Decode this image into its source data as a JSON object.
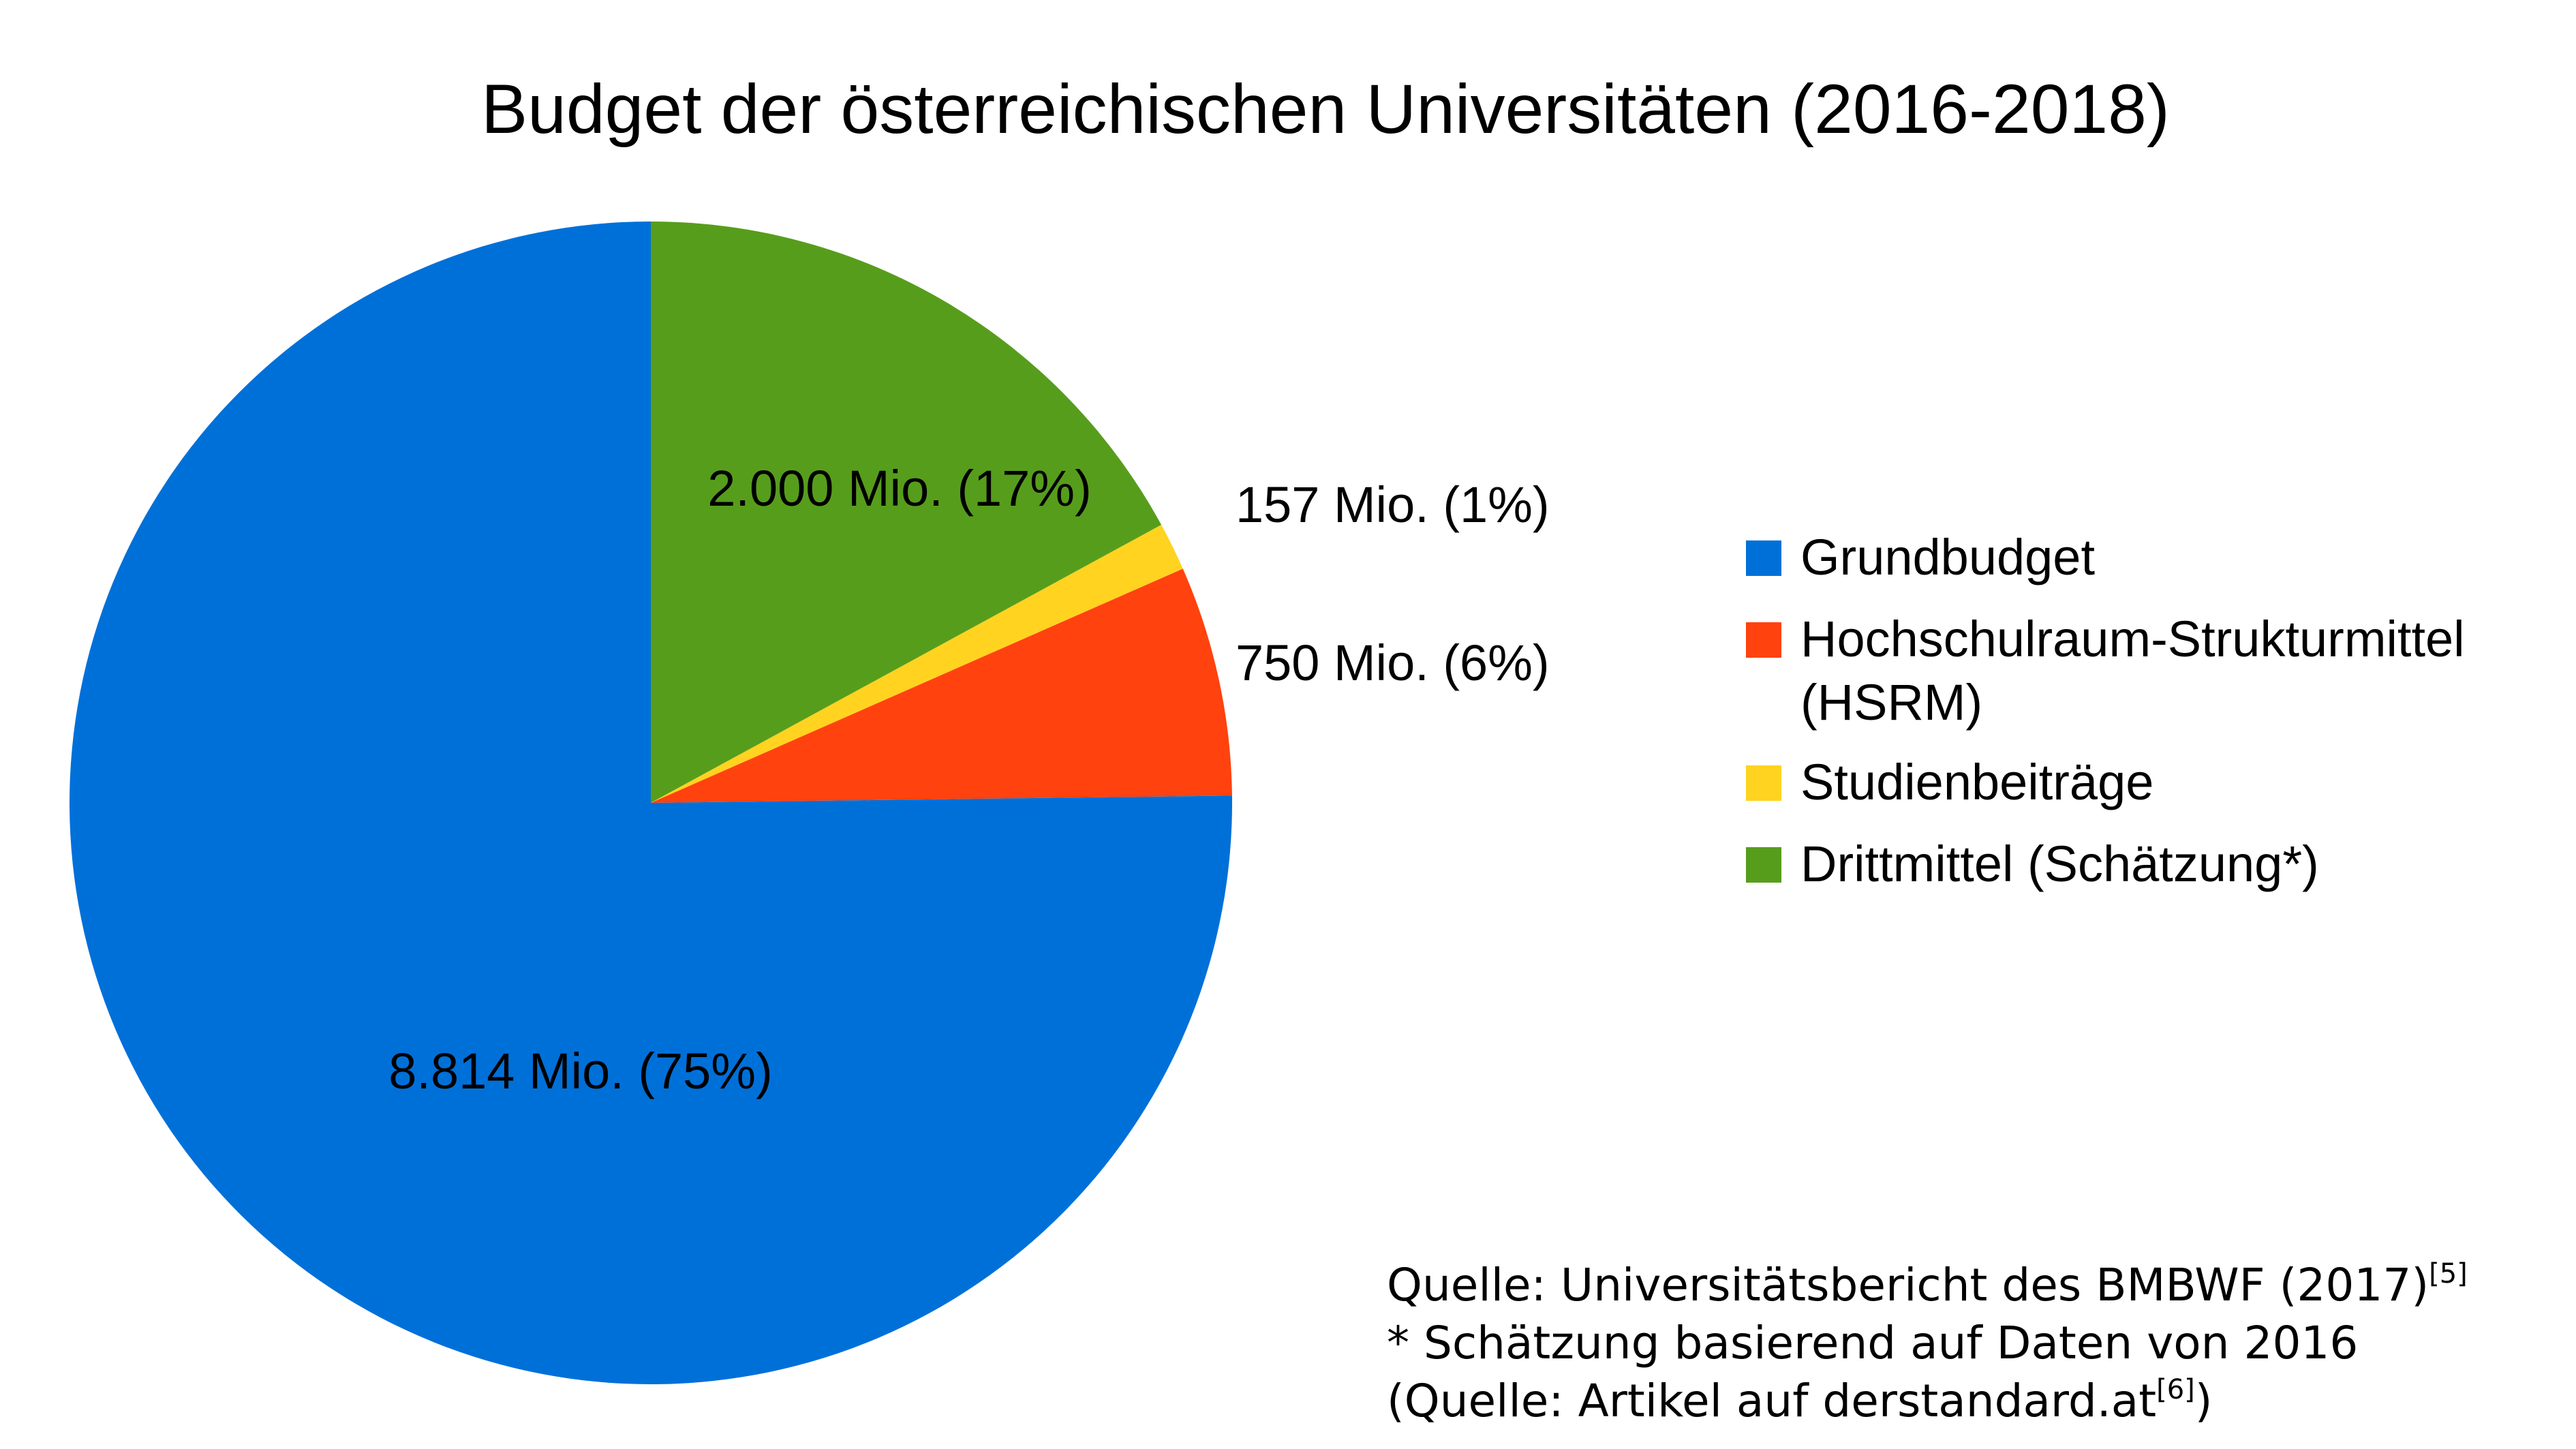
{
  "chart_data": {
    "type": "pie",
    "title": "Budget der österreichischen Universitäten (2016-2018)",
    "start_angle_deg": 0,
    "direction": "clockwise-from-top",
    "slices": [
      {
        "name": "Drittmittel (Schätzung*)",
        "value": 2000,
        "label": "2.000 Mio. (17%)",
        "color": "#579d1c"
      },
      {
        "name": "Studienbeiträge",
        "value": 157,
        "label": "157 Mio. (1%)",
        "color": "#ffd320"
      },
      {
        "name": "Hochschulraum-Strukturmittel (HSRM)",
        "value": 750,
        "label": "750 Mio. (6%)",
        "color": "#ff420e"
      },
      {
        "name": "Grundbudget",
        "value": 8814,
        "label": "8.814 Mio. (75%)",
        "color": "#0070d9"
      }
    ],
    "legend": {
      "placement": "right",
      "items": [
        {
          "lines": [
            "Grundbudget"
          ],
          "color": "#0070d9"
        },
        {
          "lines": [
            "Hochschulraum-Strukturmittel",
            "(HSRM)"
          ],
          "color": "#ff420e"
        },
        {
          "lines": [
            "Studienbeiträge"
          ],
          "color": "#ffd320"
        },
        {
          "lines": [
            "Drittmittel (Schätzung*)"
          ],
          "color": "#579d1c"
        }
      ]
    }
  },
  "source": {
    "line1": "Quelle: Universitätsbericht des BMBWF (2017)",
    "line1_ref": "[5]",
    "line2": "* Schätzung basierend auf Daten von 2016",
    "line3_pre": "(Quelle: Artikel auf derstandard.at",
    "line3_ref": "[6]",
    "line3_post": ")"
  }
}
